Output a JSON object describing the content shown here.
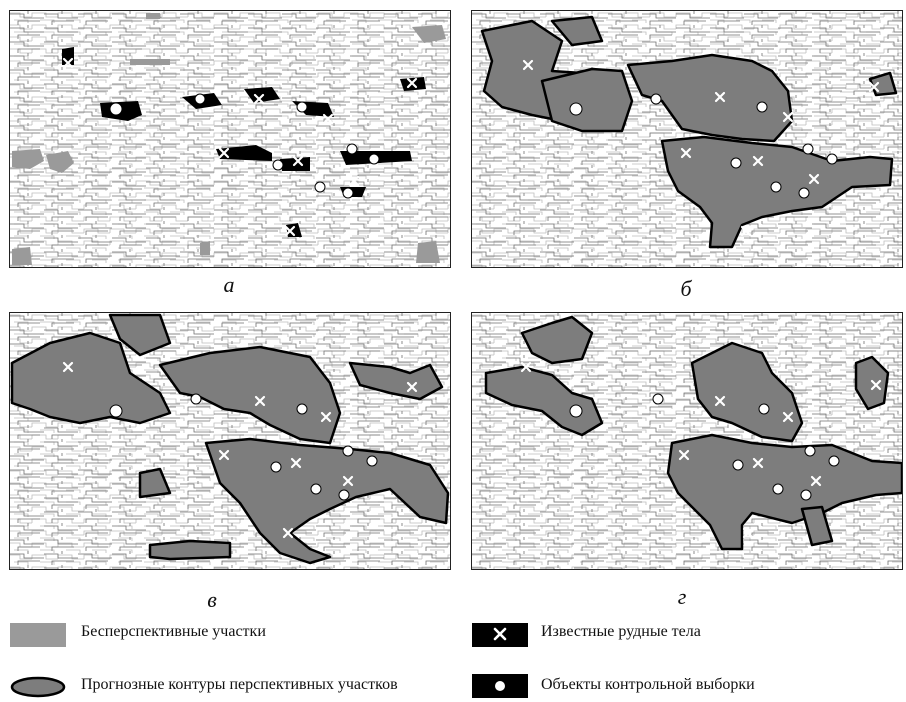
{
  "figure": {
    "panels": [
      {
        "id": "a",
        "label": "а"
      },
      {
        "id": "b",
        "label": "б"
      },
      {
        "id": "v",
        "label": "в"
      },
      {
        "id": "g",
        "label": "г"
      }
    ]
  },
  "legend": {
    "items": [
      {
        "id": "unpromising",
        "text": "Бесперспективные участки"
      },
      {
        "id": "ore",
        "text": "Известные рудные тела"
      },
      {
        "id": "contours",
        "text": "Прогнозные контуры перспективных участков"
      },
      {
        "id": "control",
        "text": "Объекты контрольной выборки"
      }
    ]
  },
  "colors": {
    "unpromising": "#9a9a9a",
    "contour_fill": "#7d7d7d",
    "ore_black": "#000000",
    "hatch": "#6f6f6f"
  }
}
